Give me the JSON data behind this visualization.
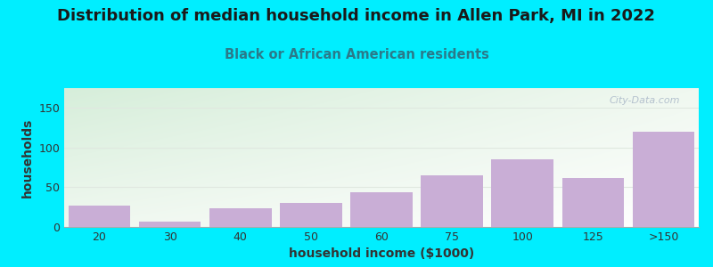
{
  "title": "Distribution of median household income in Allen Park, MI in 2022",
  "subtitle": "Black or African American residents",
  "xlabel": "household income ($1000)",
  "ylabel": "households",
  "categories": [
    "20",
    "30",
    "40",
    "50",
    "60",
    "75",
    "100",
    "125",
    ">150"
  ],
  "values": [
    27,
    7,
    24,
    30,
    44,
    65,
    85,
    62,
    120
  ],
  "bar_color": "#c9aed6",
  "background_outer": "#00eeff",
  "plot_bg_left": "#d6eeda",
  "plot_bg_right": "#f5faf5",
  "yticks": [
    0,
    50,
    100,
    150
  ],
  "ylim": [
    0,
    175
  ],
  "title_fontsize": 13,
  "subtitle_fontsize": 10.5,
  "axis_label_fontsize": 10,
  "tick_fontsize": 9,
  "watermark_text": "City-Data.com",
  "watermark_color": "#aab8c8",
  "title_color": "#1a1a1a",
  "subtitle_color": "#2a7a8a",
  "axis_label_color": "#333333",
  "gridline_color": "#e0e8e0"
}
